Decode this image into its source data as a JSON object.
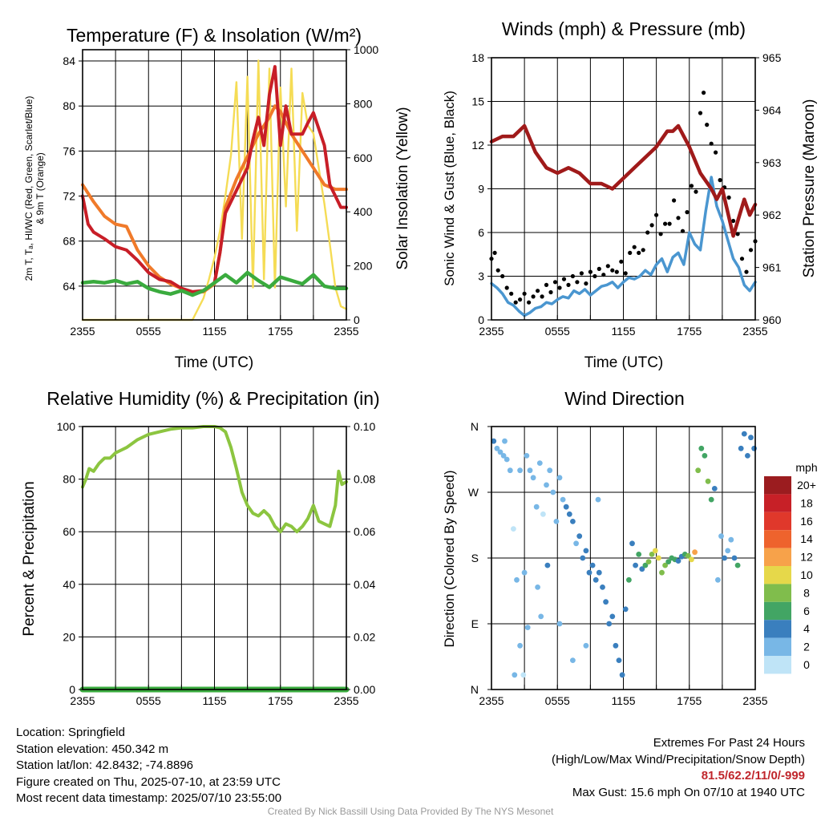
{
  "panels": {
    "temperature": {
      "title": "Temperature (F) & Insolation (W/m²)",
      "ylabel_left_line1": "2m T, Tₐ, HI/WC (Red, Green, Scarlet/Blue)",
      "ylabel_left_line2": "& 9m T (Orange)",
      "ylabel_right": "Solar Insolation (Yellow)",
      "xlabel": "Time (UTC)"
    },
    "winds": {
      "title": "Winds (mph) & Pressure (mb)",
      "ylabel_left": "Sonic Wind & Gust (Blue, Black)",
      "ylabel_right": "Station Pressure (Maroon)",
      "xlabel": "Time (UTC)"
    },
    "humidity": {
      "title": "Relative Humidity (%) & Precipitation (in)",
      "ylabel_left": "Percent & Precipitation"
    },
    "direction": {
      "title": "Wind Direction",
      "ylabel_left": "Direction (Colored By Speed)",
      "colorbar_title": "mph"
    }
  },
  "info_left": {
    "location": "Location: Springfield",
    "elevation": "Station elevation: 450.342 m",
    "latlon": "Station lat/lon: 42.8432; -74.8896",
    "created": "Figure created on Thu, 2025-07-10, at 23:59 UTC",
    "recent": "Most recent data timestamp: 2025/07/10 23:55:00"
  },
  "info_right": {
    "line1": "Extremes For Past 24 Hours",
    "line2": "(High/Low/Max Wind/Precipitation/Snow Depth)",
    "extremes": "81.5/62.2/11/0/-999",
    "gust": "Max Gust: 15.6 mph On 07/10 at 1940 UTC"
  },
  "credit": "Created By Nick Bassill Using Data Provided By The NYS Mesonet",
  "colors": {
    "temp_2m": "#c81e27",
    "temp_9m": "#f07a2a",
    "dewpoint": "#3aab3e",
    "solar": "#f5dc55",
    "wind": "#4a96d0",
    "gust": "#000000",
    "pressure": "#a01a1a",
    "rh": "#8cc540",
    "precip": "#3aab3e",
    "extremes_text": "#c0262c"
  },
  "chart_data": [
    {
      "type": "line",
      "title": "Temperature (F) & Insolation (W/m²)",
      "xlabel": "Time (UTC)",
      "x_ticks": [
        "2355",
        "0555",
        "1155",
        "1755",
        "2355"
      ],
      "x_hours_range": [
        0,
        24
      ],
      "ylim_left": [
        61,
        85
      ],
      "yticks_left": [
        64,
        68,
        72,
        76,
        80,
        84
      ],
      "ylim_right": [
        0,
        1000
      ],
      "yticks_right": [
        0,
        200,
        400,
        600,
        800,
        1000
      ],
      "series": [
        {
          "name": "Orange",
          "axis": "left",
          "x": [
            0,
            1,
            2,
            3,
            4,
            5,
            6,
            7,
            8,
            9,
            9.5,
            10,
            11,
            12,
            12.5,
            13,
            14,
            15,
            16,
            17,
            17.5,
            18,
            19,
            20,
            21,
            22,
            23,
            24
          ],
          "y": [
            73,
            71.5,
            70.2,
            69.5,
            69.3,
            67.2,
            65.8,
            64.8,
            64.2,
            63.8,
            63.6,
            63.4,
            63.5,
            64.2,
            67,
            71,
            73.5,
            75.5,
            77.5,
            79,
            80,
            79.5,
            77.5,
            76,
            74.5,
            73,
            72.6,
            72.6
          ]
        },
        {
          "name": "Red",
          "axis": "left",
          "x": [
            0,
            0.5,
            1,
            2,
            3,
            4,
            5,
            6,
            7,
            8,
            9,
            10,
            11,
            12,
            12.5,
            13,
            14,
            15,
            15.5,
            16,
            16.5,
            17,
            17.5,
            18,
            18.5,
            19,
            20,
            20.5,
            21,
            22,
            22.5,
            23,
            23.5,
            24
          ],
          "y": [
            72,
            69.5,
            68.8,
            68.2,
            67.5,
            67.2,
            66.3,
            65.2,
            64.6,
            64.4,
            63.8,
            63.5,
            63.6,
            64.3,
            67,
            70.5,
            72.5,
            74.5,
            77,
            79,
            76.5,
            81,
            83.5,
            76.5,
            80,
            77.5,
            77.5,
            78.5,
            79.4,
            76.5,
            73,
            72,
            71,
            71
          ]
        },
        {
          "name": "Green",
          "axis": "left",
          "x": [
            0,
            1,
            2,
            3,
            4,
            5,
            6,
            7,
            8,
            9,
            10,
            11,
            12,
            13,
            14,
            15,
            16,
            17,
            18,
            19,
            20,
            21,
            22,
            23,
            24
          ],
          "y": [
            64.3,
            64.4,
            64.3,
            64.5,
            64.2,
            64.4,
            63.8,
            63.5,
            63.3,
            63.6,
            63.2,
            63.6,
            64.3,
            65,
            64.3,
            65.2,
            64.5,
            63.9,
            64.8,
            64.5,
            64.2,
            65,
            64,
            63.8,
            63.8
          ]
        },
        {
          "name": "Yellow",
          "axis": "right",
          "x": [
            0,
            5,
            9,
            10,
            10.5,
            11,
            11.5,
            12,
            12.5,
            13,
            13.5,
            14,
            14.5,
            15,
            15.5,
            16,
            16.5,
            17,
            17.5,
            18,
            18.5,
            19,
            19.5,
            20,
            20.5,
            21,
            21.5,
            22,
            22.5,
            23,
            23.5,
            24
          ],
          "y": [
            0,
            0,
            0,
            0,
            40,
            80,
            150,
            230,
            330,
            460,
            610,
            880,
            300,
            900,
            120,
            960,
            150,
            930,
            120,
            860,
            420,
            930,
            330,
            840,
            720,
            690,
            560,
            430,
            280,
            120,
            50,
            40
          ]
        }
      ]
    },
    {
      "type": "line",
      "title": "Winds (mph) & Pressure (mb)",
      "xlabel": "Time (UTC)",
      "x_ticks": [
        "2355",
        "0555",
        "1155",
        "1755",
        "2355"
      ],
      "x_hours_range": [
        0,
        24
      ],
      "ylim_left": [
        0,
        18
      ],
      "yticks_left": [
        0,
        3,
        6,
        9,
        12,
        15,
        18
      ],
      "ylim_right": [
        960,
        965
      ],
      "yticks_right": [
        960,
        961,
        962,
        963,
        964,
        965
      ],
      "series": [
        {
          "name": "Blue",
          "type": "line",
          "axis": "left",
          "x": [
            0,
            0.5,
            1,
            1.5,
            2,
            2.5,
            3,
            3.5,
            4,
            4.5,
            5,
            5.5,
            6,
            6.5,
            7,
            7.5,
            8,
            8.5,
            9,
            9.5,
            10,
            10.5,
            11,
            11.5,
            12,
            12.5,
            13,
            13.5,
            14,
            14.5,
            15,
            15.5,
            16,
            16.5,
            17,
            17.5,
            18,
            18.5,
            19,
            19.5,
            20,
            20.5,
            21,
            21.5,
            22,
            22.5,
            23,
            23.5,
            24
          ],
          "y": [
            2.5,
            2.2,
            1.8,
            1.2,
            1.0,
            0.6,
            0.3,
            0.5,
            0.8,
            0.9,
            1.2,
            1.1,
            1.4,
            1.6,
            1.5,
            2.0,
            1.8,
            2.1,
            1.7,
            2.0,
            2.3,
            2.4,
            2.6,
            2.2,
            2.6,
            2.9,
            2.8,
            3.0,
            3.4,
            3.1,
            3.8,
            4.2,
            3.3,
            4.3,
            4.6,
            3.8,
            6.0,
            5.2,
            4.8,
            7.5,
            9.8,
            7.8,
            6.8,
            5.5,
            4.2,
            3.6,
            2.4,
            2.0,
            2.6
          ]
        },
        {
          "name": "Black",
          "type": "scatter",
          "axis": "left",
          "x": [
            0,
            0.3,
            0.6,
            1,
            1.4,
            1.8,
            2.2,
            2.6,
            3,
            3.4,
            3.8,
            4.2,
            4.6,
            5,
            5.4,
            5.8,
            6.2,
            6.6,
            7,
            7.4,
            7.8,
            8.2,
            8.6,
            9,
            9.4,
            9.8,
            10.2,
            10.6,
            11,
            11.4,
            11.8,
            12.2,
            12.6,
            13,
            13.4,
            13.8,
            14.2,
            14.6,
            15,
            15.4,
            15.8,
            16.2,
            16.6,
            17,
            17.4,
            17.8,
            18.2,
            18.6,
            19,
            19.3,
            19.6,
            20,
            20.4,
            20.8,
            21.2,
            21.6,
            22,
            22.4,
            22.8,
            23.2,
            23.6,
            24
          ],
          "y": [
            4.2,
            4.6,
            3.4,
            3.0,
            2.2,
            1.8,
            1.2,
            1.4,
            1.8,
            1.2,
            1.6,
            2.0,
            1.6,
            2.4,
            1.9,
            2.6,
            2.2,
            2.8,
            2.4,
            3.0,
            2.6,
            3.2,
            2.5,
            3.3,
            3.0,
            3.5,
            3.1,
            3.7,
            3.4,
            3.3,
            4.0,
            3.2,
            4.6,
            5.0,
            4.6,
            4.8,
            6.0,
            6.5,
            7.2,
            5.9,
            6.6,
            6.6,
            8.2,
            7.0,
            6.1,
            7.4,
            9.2,
            8.8,
            14.2,
            15.6,
            13.4,
            12.1,
            11.5,
            9.6,
            9.1,
            8.4,
            6.8,
            5.9,
            4.2,
            3.3,
            4.8,
            5.4
          ]
        },
        {
          "name": "Maroon",
          "type": "line",
          "axis": "right",
          "x": [
            0,
            1,
            2,
            3,
            4,
            5,
            6,
            7,
            8,
            9,
            10,
            11,
            12,
            13,
            14,
            15,
            16,
            16.5,
            17,
            17.5,
            18,
            19,
            20,
            20.5,
            21,
            22,
            23,
            23.5,
            24
          ],
          "y": [
            963.4,
            963.5,
            963.5,
            963.7,
            963.2,
            962.9,
            962.8,
            962.9,
            962.8,
            962.6,
            962.6,
            962.5,
            962.7,
            962.9,
            963.1,
            963.3,
            963.6,
            963.6,
            963.7,
            963.5,
            963.3,
            962.8,
            962.5,
            962.3,
            962.5,
            961.6,
            962.3,
            962.0,
            962.2
          ]
        }
      ]
    },
    {
      "type": "line",
      "title": "Relative Humidity (%) & Precipitation (in)",
      "x_ticks": [
        "2355",
        "0555",
        "1155",
        "1755",
        "2355"
      ],
      "x_hours_range": [
        0,
        24
      ],
      "ylim_left": [
        0,
        100
      ],
      "yticks_left": [
        0,
        20,
        40,
        60,
        80,
        100
      ],
      "ylim_right": [
        0,
        0.1
      ],
      "yticks_right": [
        "0.00",
        "0.02",
        "0.04",
        "0.06",
        "0.08",
        "0.10"
      ],
      "series": [
        {
          "name": "RH",
          "axis": "left",
          "x": [
            0,
            0.3,
            0.6,
            1,
            1.5,
            2,
            2.5,
            3,
            3.5,
            4,
            5,
            6,
            7,
            8,
            9,
            10,
            11,
            11.5,
            12,
            12.5,
            13,
            13.5,
            14,
            14.5,
            15,
            15.5,
            16,
            16.5,
            17,
            17.5,
            18,
            18.5,
            19,
            19.5,
            20,
            20.5,
            21,
            21.5,
            22,
            22.5,
            23,
            23.3,
            23.6,
            24
          ],
          "y": [
            77,
            80,
            84,
            83,
            86,
            88,
            88,
            90,
            91,
            92,
            95,
            97,
            98,
            99,
            99.5,
            99.5,
            100,
            100,
            100,
            99.5,
            98,
            92,
            84,
            75,
            70,
            67,
            66,
            68,
            66,
            62,
            60,
            63,
            62,
            60,
            62,
            65,
            70,
            64,
            63,
            62,
            70,
            83,
            78,
            79
          ]
        },
        {
          "name": "Precipitation",
          "axis": "right",
          "x": [
            0,
            24
          ],
          "y": [
            0,
            0
          ]
        }
      ]
    },
    {
      "type": "scatter",
      "title": "Wind Direction",
      "x_ticks": [
        "2355",
        "0555",
        "1155",
        "1755",
        "2355"
      ],
      "x_hours_range": [
        0,
        24
      ],
      "y_ticks": [
        "N",
        "E",
        "S",
        "W",
        "N"
      ],
      "ylim_degrees": [
        0,
        360
      ],
      "colorbar": {
        "title": "mph",
        "labels": [
          "20+",
          "18",
          "16",
          "14",
          "12",
          "10",
          "8",
          "6",
          "4",
          "2",
          "0"
        ],
        "colors": [
          "#9b1c1f",
          "#c72027",
          "#e0382b",
          "#ee632d",
          "#f7a24a",
          "#e6d84a",
          "#80bd4c",
          "#42a564",
          "#3a7fbe",
          "#78b7e6",
          "#bfe4f7"
        ]
      },
      "points_hours": [
        0.2,
        0.5,
        0.8,
        1.1,
        1.4,
        1.7,
        2.0,
        2.3,
        2.6,
        2.9,
        3.2,
        3.5,
        3.8,
        4.1,
        4.4,
        4.7,
        5.0,
        5.3,
        5.6,
        5.9,
        6.2,
        6.5,
        6.8,
        7.1,
        7.4,
        7.7,
        8.0,
        8.3,
        8.6,
        8.9,
        9.2,
        9.5,
        9.8,
        10.1,
        10.4,
        10.7,
        11.0,
        11.3,
        11.6,
        11.9,
        12.2,
        12.5,
        12.8,
        13.1,
        13.4,
        13.7,
        14.0,
        14.3,
        14.6,
        14.9,
        15.2,
        15.5,
        15.8,
        16.1,
        16.4,
        16.7,
        17.0,
        17.3,
        17.6,
        17.9,
        18.2,
        18.5,
        18.8,
        19.1,
        19.4,
        19.7,
        20.0,
        20.3,
        20.6,
        20.9,
        21.2,
        21.5,
        21.8,
        22.1,
        22.4,
        22.7,
        23.0,
        23.3,
        23.6,
        23.9,
        2.1,
        3.3,
        4.2,
        5.1,
        6.2,
        7.4,
        8.6,
        3.0,
        4.5,
        9.7,
        1.2,
        2.6
      ],
      "points_degrees": [
        340,
        330,
        325,
        320,
        315,
        300,
        220,
        150,
        60,
        20,
        320,
        300,
        290,
        250,
        310,
        240,
        280,
        300,
        270,
        230,
        290,
        260,
        250,
        240,
        230,
        200,
        210,
        180,
        190,
        160,
        170,
        150,
        160,
        140,
        120,
        90,
        100,
        60,
        40,
        20,
        110,
        150,
        200,
        170,
        185,
        165,
        170,
        175,
        185,
        190,
        180,
        160,
        170,
        175,
        180,
        178,
        176,
        182,
        185,
        183,
        178,
        188,
        300,
        330,
        320,
        285,
        260,
        275,
        150,
        210,
        180,
        190,
        205,
        180,
        170,
        330,
        350,
        320,
        345,
        330,
        20,
        85,
        140,
        170,
        90,
        40,
        60,
        160,
        100,
        260,
        340,
        300
      ],
      "points_speed": [
        3,
        2,
        2,
        1,
        1,
        1,
        0,
        2,
        1,
        0,
        2,
        1,
        2,
        1,
        1,
        0,
        1,
        1,
        2,
        2,
        2,
        2,
        3,
        3,
        3,
        2,
        3,
        3,
        3,
        3,
        3,
        4,
        3,
        4,
        3,
        4,
        3,
        4,
        4,
        4,
        3,
        5,
        4,
        4,
        5,
        4,
        6,
        7,
        8,
        9,
        10,
        8,
        7,
        6,
        5,
        6,
        4,
        3,
        5,
        7,
        9,
        11,
        8,
        6,
        5,
        7,
        5,
        4,
        2,
        1,
        3,
        2,
        2,
        4,
        5,
        4,
        3,
        3,
        4,
        4,
        1,
        1,
        2,
        3,
        2,
        1,
        2,
        1,
        2,
        1,
        2,
        1
      ]
    }
  ]
}
